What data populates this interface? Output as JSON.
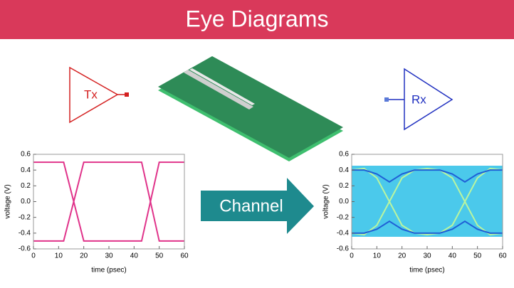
{
  "header": {
    "title": "Eye Diagrams"
  },
  "diagram": {
    "tx": "Tx",
    "rx": "Rx",
    "channel": "Channel"
  },
  "chart_data": [
    {
      "type": "line",
      "xlabel": "time (psec)",
      "ylabel": "voltage (V)",
      "x": [
        0,
        12,
        20,
        43,
        50,
        60
      ],
      "series": [
        {
          "color": "#e0338a",
          "values": [
            -0.5,
            -0.5,
            0.5,
            0.5,
            -0.5,
            -0.5
          ]
        },
        {
          "color": "#e0338a",
          "values": [
            0.5,
            0.5,
            -0.5,
            -0.5,
            0.5,
            0.5
          ]
        }
      ],
      "xlim": [
        0,
        60
      ],
      "xticks": [
        0,
        10,
        20,
        30,
        40,
        50,
        60
      ],
      "ylim": [
        -0.6,
        0.6
      ],
      "yticks": [
        -0.6,
        -0.4,
        -0.2,
        {
          "value": 0,
          "label": "0.0"
        },
        0.2,
        0.4,
        0.6
      ],
      "grid": false
    },
    {
      "type": "line",
      "xlabel": "time (psec)",
      "ylabel": "voltage (V)",
      "x": [
        0,
        5,
        10,
        15,
        20,
        25,
        30,
        35,
        40,
        45,
        50,
        55,
        60
      ],
      "series": [
        {
          "color": "#b9f5a0",
          "values": [
            0.4,
            0.42,
            0.3,
            0,
            -0.3,
            -0.4,
            -0.42,
            -0.4,
            -0.3,
            0,
            0.3,
            0.42,
            0.4
          ]
        },
        {
          "color": "#b9f5a0",
          "values": [
            -0.4,
            -0.42,
            -0.3,
            0,
            0.3,
            0.4,
            0.42,
            0.4,
            0.3,
            0,
            -0.3,
            -0.42,
            -0.4
          ]
        },
        {
          "color": "#1f5fd6",
          "values": [
            0.4,
            0.4,
            0.35,
            0.25,
            0.35,
            0.4,
            0.4,
            0.4,
            0.35,
            0.25,
            0.35,
            0.4,
            0.4
          ]
        },
        {
          "color": "#1f5fd6",
          "values": [
            -0.4,
            -0.4,
            -0.35,
            -0.25,
            -0.35,
            -0.4,
            -0.4,
            -0.4,
            -0.35,
            -0.25,
            -0.35,
            -0.4,
            -0.4
          ]
        }
      ],
      "xlim": [
        0,
        60
      ],
      "xticks": [
        0,
        10,
        20,
        30,
        40,
        50,
        60
      ],
      "ylim": [
        -0.6,
        0.6
      ],
      "yticks": [
        -0.6,
        -0.4,
        -0.2,
        {
          "value": 0,
          "label": "0.0"
        },
        0.2,
        0.4,
        0.6
      ],
      "grid": false
    }
  ]
}
